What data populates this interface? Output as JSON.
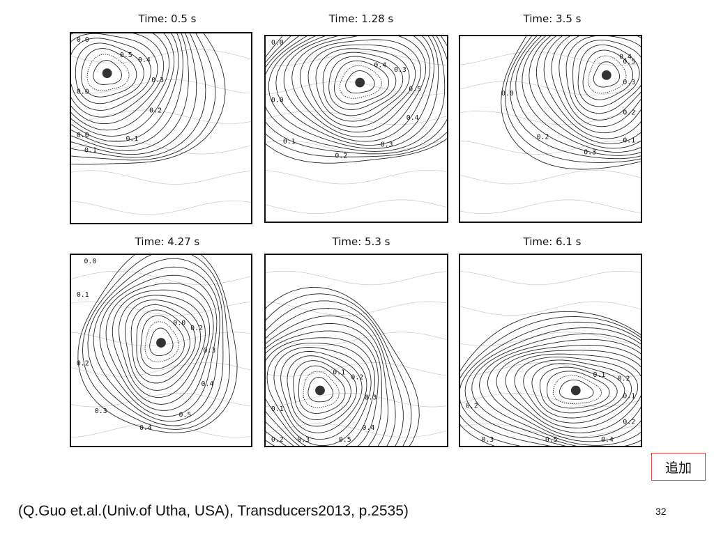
{
  "panels": [
    {
      "title": "Time: 0.5 s",
      "labels": [
        "0.5",
        "0.4",
        "0.3",
        "0.2",
        "0.1",
        "0.1",
        "0.0",
        "0.0",
        "0.0"
      ]
    },
    {
      "title": "Time: 1.28 s",
      "labels": [
        "0.4",
        "0.3",
        "0.5",
        "0.4",
        "0.3",
        "0.2",
        "0.1",
        "0.0",
        "0.0"
      ]
    },
    {
      "title": "Time: 3.5 s",
      "labels": [
        "0.4",
        "0.5",
        "0.3",
        "0.2",
        "0.1",
        "0.3",
        "0.2",
        "0.0"
      ]
    },
    {
      "title": "Time: 4.27 s",
      "labels": [
        "0.0",
        "0.2",
        "0.3",
        "0.4",
        "0.5",
        "0.4",
        "0.3",
        "0.2",
        "0.1",
        "0.0"
      ]
    },
    {
      "title": "Time: 5.3 s",
      "labels": [
        "0.1",
        "0.2",
        "0.3",
        "0.4",
        "0.5",
        "0.3",
        "0.2",
        "0.1"
      ]
    },
    {
      "title": "Time: 6.1 s",
      "labels": [
        "0.1",
        "0.2",
        "0.1",
        "0.2",
        "0.4",
        "0.5",
        "0.3",
        "0.2"
      ]
    }
  ],
  "badge": "追加",
  "citation": "(Q.Guo et.al.(Univ.of Utha, USA), Transducers2013, p.2535)",
  "page_number": "32"
}
